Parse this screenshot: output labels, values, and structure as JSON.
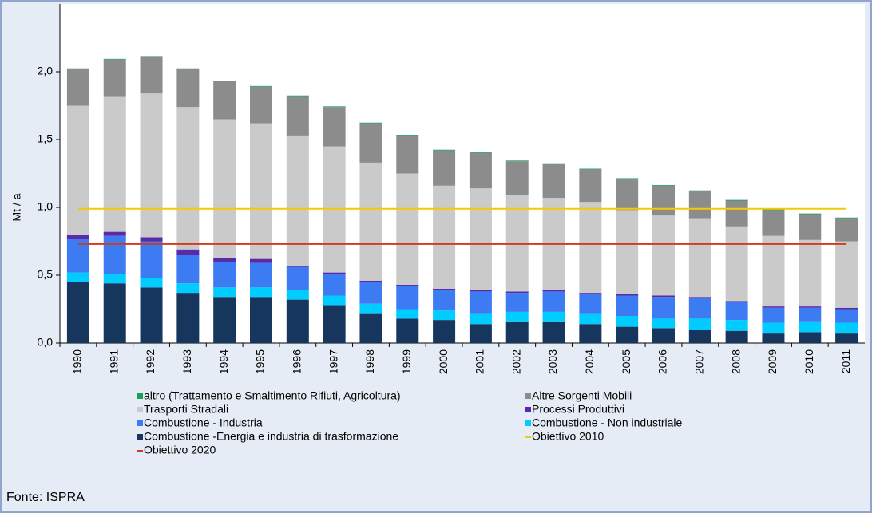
{
  "chart_data": {
    "type": "stacked_bar",
    "y_label": "Mt / a",
    "source": "Fonte: ISPRA",
    "categories": [
      "1990",
      "1991",
      "1992",
      "1993",
      "1994",
      "1995",
      "1996",
      "1997",
      "1998",
      "1999",
      "2000",
      "2001",
      "2002",
      "2003",
      "2004",
      "2005",
      "2006",
      "2007",
      "2008",
      "2009",
      "2010",
      "2011"
    ],
    "series": [
      {
        "name": "Combustione -Energia e industria di trasformazione",
        "color": "#17365d",
        "values": [
          0.45,
          0.44,
          0.41,
          0.37,
          0.34,
          0.34,
          0.32,
          0.28,
          0.22,
          0.18,
          0.17,
          0.14,
          0.16,
          0.16,
          0.14,
          0.12,
          0.11,
          0.1,
          0.09,
          0.07,
          0.08,
          0.07
        ]
      },
      {
        "name": "Combustione - Non industriale",
        "color": "#00ccff",
        "values": [
          0.07,
          0.07,
          0.07,
          0.07,
          0.07,
          0.07,
          0.07,
          0.07,
          0.07,
          0.07,
          0.07,
          0.08,
          0.07,
          0.07,
          0.08,
          0.08,
          0.07,
          0.08,
          0.08,
          0.08,
          0.08,
          0.08
        ]
      },
      {
        "name": "Combustione - Industria",
        "color": "#3d7bf2",
        "values": [
          0.25,
          0.28,
          0.27,
          0.21,
          0.19,
          0.18,
          0.17,
          0.16,
          0.16,
          0.17,
          0.15,
          0.16,
          0.14,
          0.15,
          0.14,
          0.15,
          0.16,
          0.15,
          0.13,
          0.11,
          0.1,
          0.1
        ]
      },
      {
        "name": "Processi Produttivi",
        "color": "#5b2aa8",
        "values": [
          0.03,
          0.03,
          0.03,
          0.04,
          0.03,
          0.03,
          0.01,
          0.01,
          0.01,
          0.01,
          0.01,
          0.01,
          0.01,
          0.01,
          0.01,
          0.01,
          0.01,
          0.01,
          0.01,
          0.01,
          0.01,
          0.01
        ]
      },
      {
        "name": "Trasporti Stradali",
        "color": "#cacaca",
        "values": [
          0.95,
          1.0,
          1.06,
          1.05,
          1.02,
          1.0,
          0.96,
          0.93,
          0.87,
          0.82,
          0.76,
          0.75,
          0.71,
          0.68,
          0.67,
          0.62,
          0.59,
          0.58,
          0.55,
          0.52,
          0.49,
          0.49
        ]
      },
      {
        "name": "Altre Sorgenti Mobili",
        "color": "#8c8c8c",
        "values": [
          0.27,
          0.27,
          0.27,
          0.28,
          0.28,
          0.27,
          0.29,
          0.29,
          0.29,
          0.28,
          0.26,
          0.26,
          0.25,
          0.25,
          0.24,
          0.23,
          0.22,
          0.2,
          0.19,
          0.19,
          0.19,
          0.17
        ]
      },
      {
        "name": "altro (Trattamento e Smaltimento Rifiuti, Agricoltura)",
        "color": "#1e9e5a",
        "values": [
          0.005,
          0.005,
          0.005,
          0.005,
          0.005,
          0.005,
          0.005,
          0.005,
          0.005,
          0.005,
          0.005,
          0.005,
          0.005,
          0.005,
          0.005,
          0.005,
          0.005,
          0.005,
          0.005,
          0.005,
          0.005,
          0.005
        ]
      }
    ],
    "lines": [
      {
        "name": "Obiettivo 2010",
        "color": "#f2cc00",
        "value": 0.99
      },
      {
        "name": "Obiettivo 2020",
        "color": "#d23a1c",
        "value": 0.73
      }
    ],
    "ylim": [
      0,
      2.5
    ],
    "yticks": [
      {
        "value": 0,
        "label": "0,0"
      },
      {
        "value": 0.5,
        "label": "0,5"
      },
      {
        "value": 1,
        "label": "1,0"
      },
      {
        "value": 1.5,
        "label": "1,5"
      },
      {
        "value": 2,
        "label": "2,0"
      }
    ]
  }
}
